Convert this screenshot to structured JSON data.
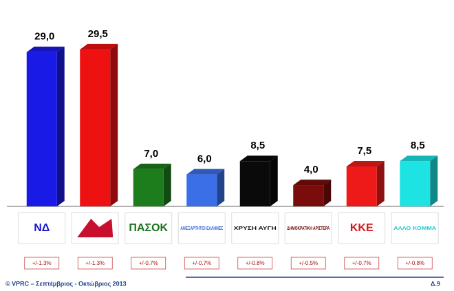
{
  "chart_data": {
    "type": "bar3d",
    "categories": [
      "ΝΔ",
      null,
      "ΠΑΣΟΚ",
      "ΑΝΕΞΑΡΤΗΤΟΙ ΕΛΛΗΝΕΣ",
      "ΧΡΥΣΗ ΑΥΓΗ",
      "ΔΗΜΟΚΡΑΤΙΚΗ ΑΡΙΣΤΕΡΑ",
      "ΚΚΕ",
      "ΑΛΛΟ ΚΟΜΜΑ"
    ],
    "values": [
      29.0,
      29.5,
      7.0,
      6.0,
      8.5,
      4.0,
      7.5,
      8.5
    ],
    "value_labels": [
      "29,0",
      "29,5",
      "7,0",
      "6,0",
      "8,5",
      "4,0",
      "7,5",
      "8,5"
    ],
    "colors": [
      "#1a1ae6",
      "#ee1111",
      "#1d7d1d",
      "#3b6fe8",
      "#0a0a0a",
      "#7a0c0c",
      "#ee1a1a",
      "#1de3e3"
    ],
    "margins": [
      "+/-1.3%",
      "+/-1.3%",
      "+/-0.7%",
      "+/-0.7%",
      "+/-0.8%",
      "+/-0.5%",
      "+/-0.7%",
      "+/-0.8%"
    ],
    "ylim": [
      0,
      30
    ]
  },
  "footer": {
    "source": "© VPRC – Σεπτέμβριος  - Οκτώβριος 2013",
    "page": "Δ.9"
  }
}
